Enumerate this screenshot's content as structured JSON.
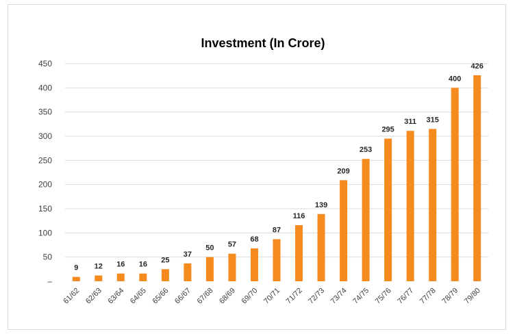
{
  "chart_data": {
    "type": "bar",
    "title": "Investment (In Crore)",
    "xlabel": "",
    "ylabel": "",
    "categories": [
      "61/62",
      "62/63",
      "63/64",
      "64/65",
      "65/66",
      "66/67",
      "67/68",
      "68/69",
      "69/70",
      "70/71",
      "71/72",
      "72/73",
      "73/74",
      "74/75",
      "75/76",
      "76/77",
      "77/78",
      "78/79",
      "79/80"
    ],
    "values": [
      9,
      12,
      16,
      16,
      25,
      37,
      50,
      57,
      68,
      87,
      116,
      139,
      209,
      253,
      295,
      311,
      315,
      400,
      426
    ],
    "ylim": [
      0,
      450
    ],
    "yticks": [
      0,
      50,
      100,
      150,
      200,
      250,
      300,
      350,
      400,
      450
    ],
    "ytick_labels": [
      "–",
      "50",
      "100",
      "150",
      "200",
      "250",
      "300",
      "350",
      "400",
      "450"
    ],
    "grid": true,
    "legend": "none",
    "bar_color": "#f58a1f"
  }
}
